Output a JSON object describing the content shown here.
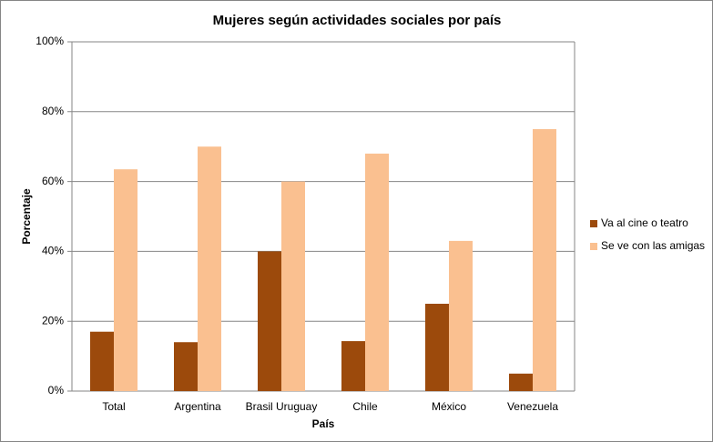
{
  "chart_data": {
    "type": "bar",
    "title": "Mujeres según actividades sociales por país",
    "xlabel": "País",
    "ylabel": "Porcentaje",
    "categories": [
      "Total",
      "Argentina",
      "Brasil Uruguay",
      "Chile",
      "México",
      "Venezuela"
    ],
    "series": [
      {
        "name": "Va al cine o teatro",
        "color": "#9c4a0c",
        "values": [
          17,
          14,
          40,
          14.3,
          25,
          5
        ]
      },
      {
        "name": "Se ve con las amigas",
        "color": "#fac090",
        "values": [
          63.5,
          70,
          60,
          68,
          43,
          75
        ]
      }
    ],
    "ylim": [
      0,
      100
    ],
    "yticks": [
      {
        "value": 0,
        "label": "0%"
      },
      {
        "value": 20,
        "label": "20%"
      },
      {
        "value": 40,
        "label": "40%"
      },
      {
        "value": 60,
        "label": "60%"
      },
      {
        "value": 80,
        "label": "80%"
      },
      {
        "value": 100,
        "label": "100%"
      }
    ],
    "grid": true,
    "legend": "right"
  }
}
